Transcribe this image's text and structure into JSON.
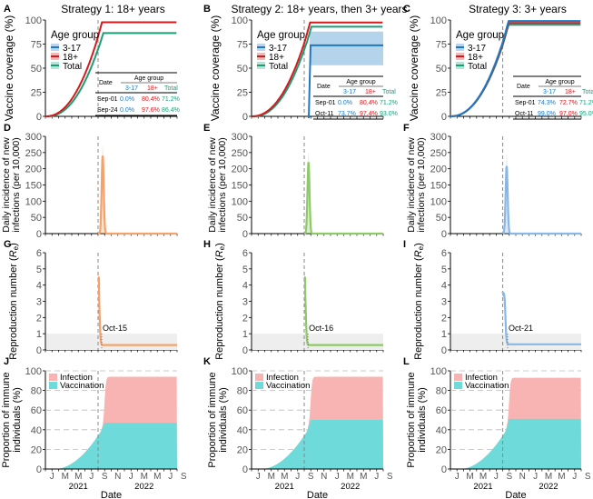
{
  "x_axis": {
    "label": "Date",
    "months": [
      "J",
      "M",
      "M",
      "J",
      "S",
      "N",
      "J",
      "M",
      "M",
      "J",
      "S"
    ],
    "years": [
      "2021",
      "2022"
    ],
    "range_months": [
      0,
      20
    ],
    "vline_month": 8
  },
  "colors": {
    "c317": "#1f78c1",
    "c18": "#d7191c",
    "total": "#1a9e77",
    "band317": "#a6cde8",
    "s1": "#f4a26b",
    "s2": "#8dc967",
    "s3": "#8ab8e6",
    "infection": "#f8b4b2",
    "vaccination": "#6fdada"
  },
  "chart_data": [
    {
      "panel": "A",
      "type": "line",
      "title": "Strategy 1: 18+ years",
      "ylabel": "Vaccine coverage (%)",
      "ylim": [
        0,
        100
      ],
      "yticks": [
        0,
        25,
        50,
        75,
        100
      ],
      "legend_title": "Age group",
      "legend": [
        "3-17",
        "18+",
        "Total"
      ],
      "series": [
        {
          "name": "3-17",
          "key": "c317",
          "start": 0,
          "plateau": 0
        },
        {
          "name": "18+",
          "key": "c18",
          "plateau": 97.6
        },
        {
          "name": "Total",
          "key": "total",
          "plateau": 86.4
        }
      ],
      "table": {
        "header_date": "Date",
        "header_group": "Age group",
        "cols": [
          "3-17",
          "18+",
          "Total"
        ],
        "rows": [
          [
            "Sep-01",
            "0.0%",
            "80.4%",
            "71.2%"
          ],
          [
            "Sep-24",
            "0.0%",
            "97.6%",
            "86.4%"
          ]
        ]
      }
    },
    {
      "panel": "B",
      "type": "line",
      "title": "Strategy 2: 18+ years, then 3+ years",
      "ylabel": "Vaccine coverage (%)",
      "ylim": [
        0,
        100
      ],
      "yticks": [
        0,
        25,
        50,
        75,
        100
      ],
      "legend_title": "Age group",
      "legend": [
        "3-17",
        "18+",
        "Total"
      ],
      "series": [
        {
          "name": "3-17",
          "key": "c317",
          "plateau": 73.7,
          "band": [
            53,
            88
          ]
        },
        {
          "name": "18+",
          "key": "c18",
          "plateau": 97.4
        },
        {
          "name": "Total",
          "key": "total",
          "plateau": 93.0
        }
      ],
      "table": {
        "header_date": "Date",
        "header_group": "Age group",
        "cols": [
          "3-17",
          "18+",
          "Total"
        ],
        "rows": [
          [
            "Sep-01",
            "0.0%",
            "80.4%",
            "71.2%"
          ],
          [
            "Oct-11",
            "73.7%",
            "97.4%",
            "93.0%"
          ]
        ]
      }
    },
    {
      "panel": "C",
      "type": "line",
      "title": "Strategy 3: 3+ years",
      "ylabel": "Vaccine coverage (%)",
      "ylim": [
        0,
        100
      ],
      "yticks": [
        0,
        25,
        50,
        75,
        100
      ],
      "legend_title": "Age group",
      "legend": [
        "3-17",
        "18+",
        "Total"
      ],
      "series": [
        {
          "name": "3-17",
          "key": "c317",
          "plateau": 99.0
        },
        {
          "name": "18+",
          "key": "c18",
          "plateau": 97.0
        },
        {
          "name": "Total",
          "key": "total",
          "plateau": 95.0
        }
      ],
      "table": {
        "header_date": "Date",
        "header_group": "Age group",
        "cols": [
          "3-17",
          "18+",
          "Total"
        ],
        "rows": [
          [
            "Sep-01",
            "74.3%",
            "72.7%",
            "71.2%"
          ],
          [
            "Oct-11",
            "99.0%",
            "97.0%",
            "95.0%"
          ]
        ]
      }
    },
    {
      "panel": "D",
      "type": "line",
      "ylabel": "Daily incidence of new infections (per 10,000)",
      "ylim": [
        0,
        300
      ],
      "yticks": [
        0,
        50,
        100,
        150,
        200,
        250,
        300
      ],
      "peak_month": 8.7,
      "peak": 240,
      "peak_upper": 272,
      "color_key": "s1"
    },
    {
      "panel": "E",
      "type": "line",
      "ylabel": "Daily incidence of new infections (per 10,000)",
      "ylim": [
        0,
        300
      ],
      "yticks": [
        0,
        50,
        100,
        150,
        200,
        250,
        300
      ],
      "peak_month": 8.65,
      "peak": 218,
      "peak_upper": 250,
      "color_key": "s2"
    },
    {
      "panel": "F",
      "type": "line",
      "ylabel": "Daily incidence of new infections (per 10,000)",
      "ylim": [
        0,
        300
      ],
      "yticks": [
        0,
        50,
        100,
        150,
        200,
        250,
        300
      ],
      "peak_month": 8.6,
      "peak": 208,
      "peak_upper": 245,
      "color_key": "s3"
    },
    {
      "panel": "G",
      "type": "line",
      "ylabel": "Reproduction number (R_e)",
      "ylim": [
        0,
        6
      ],
      "yticks": [
        0,
        1,
        2,
        3,
        4,
        5,
        6
      ],
      "start": 4.5,
      "end": 0.3,
      "cross_month": 8.5,
      "annotation": "Oct-15",
      "color_key": "s1",
      "threshold": 1
    },
    {
      "panel": "H",
      "type": "line",
      "ylabel": "Reproduction number (R_e)",
      "ylim": [
        0,
        6
      ],
      "yticks": [
        0,
        1,
        2,
        3,
        4,
        5,
        6
      ],
      "start": 4.5,
      "end": 0.3,
      "cross_month": 8.52,
      "annotation": "Oct-16",
      "color_key": "s2",
      "threshold": 1
    },
    {
      "panel": "I",
      "type": "line",
      "ylabel": "Reproduction number (R_e)",
      "ylim": [
        0,
        6
      ],
      "yticks": [
        0,
        1,
        2,
        3,
        4,
        5,
        6
      ],
      "start": 3.6,
      "end": 0.35,
      "cross_month": 8.7,
      "annotation": "Oct-21",
      "color_key": "s3",
      "threshold": 1
    },
    {
      "panel": "J",
      "type": "area",
      "ylabel": "Proportion of immune individuals (%)",
      "ylim": [
        0,
        100
      ],
      "yticks": [
        0,
        20,
        40,
        60,
        80,
        100
      ],
      "legend": [
        "Infection",
        "Vaccination"
      ],
      "vacc_plateau": 47,
      "total_plateau": 94
    },
    {
      "panel": "K",
      "type": "area",
      "ylabel": "Proportion of immune individuals (%)",
      "ylim": [
        0,
        100
      ],
      "yticks": [
        0,
        20,
        40,
        60,
        80,
        100
      ],
      "legend": [
        "Infection",
        "Vaccination"
      ],
      "vacc_plateau": 50,
      "total_plateau": 94
    },
    {
      "panel": "L",
      "type": "area",
      "ylabel": "Proportion of immune individuals (%)",
      "ylim": [
        0,
        100
      ],
      "yticks": [
        0,
        20,
        40,
        60,
        80,
        100
      ],
      "legend": [
        "Infection",
        "Vaccination"
      ],
      "vacc_plateau": 51,
      "total_plateau": 93
    }
  ]
}
